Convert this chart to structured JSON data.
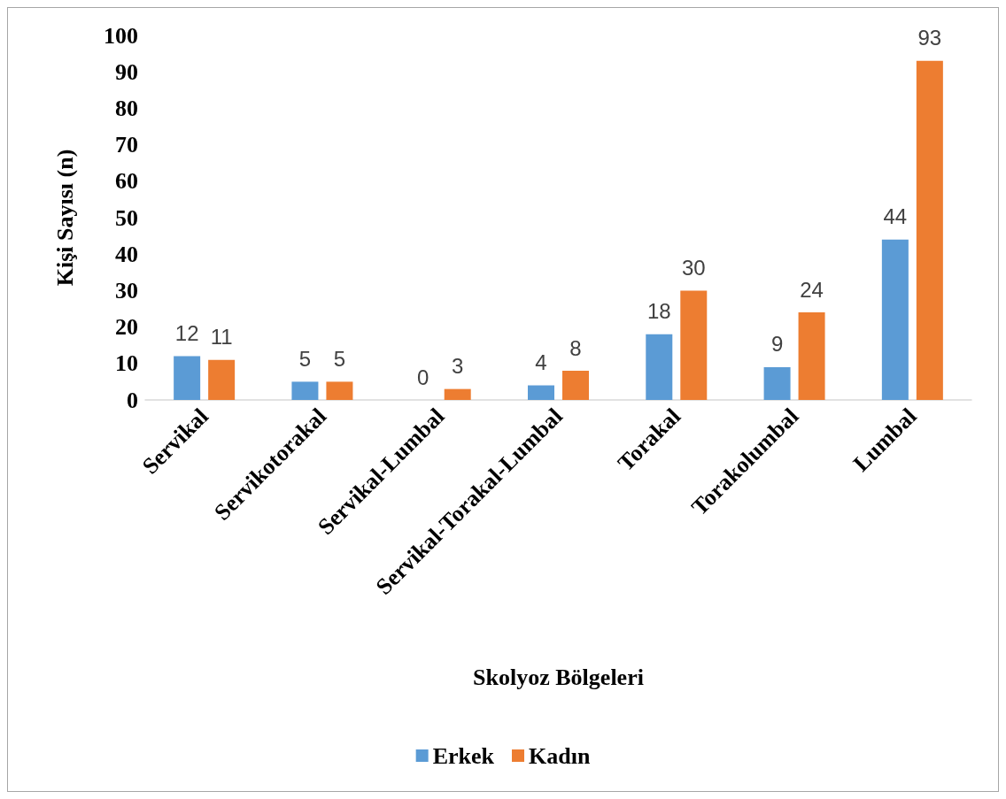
{
  "chart_data": {
    "type": "bar",
    "xlabel": "Skolyoz Bölgeleri",
    "ylabel": "Kişi Sayısı (n)",
    "categories": [
      "Servikal",
      "Servikotorakal",
      "Servikal-Lumbal",
      "Servikal-Torakal-Lumbal",
      "Torakal",
      "Torakolumbal",
      "Lumbal"
    ],
    "series": [
      {
        "name": "Erkek",
        "color": "#5b9bd5",
        "values": [
          12,
          5,
          0,
          4,
          18,
          9,
          44
        ]
      },
      {
        "name": "Kadın",
        "color": "#ed7d31",
        "values": [
          11,
          5,
          3,
          8,
          30,
          24,
          93
        ]
      }
    ],
    "ylim": [
      0,
      100
    ],
    "yticks": [
      0,
      10,
      20,
      30,
      40,
      50,
      60,
      70,
      80,
      90,
      100
    ],
    "grid": false,
    "legend": "bottom",
    "data_labels": true
  }
}
